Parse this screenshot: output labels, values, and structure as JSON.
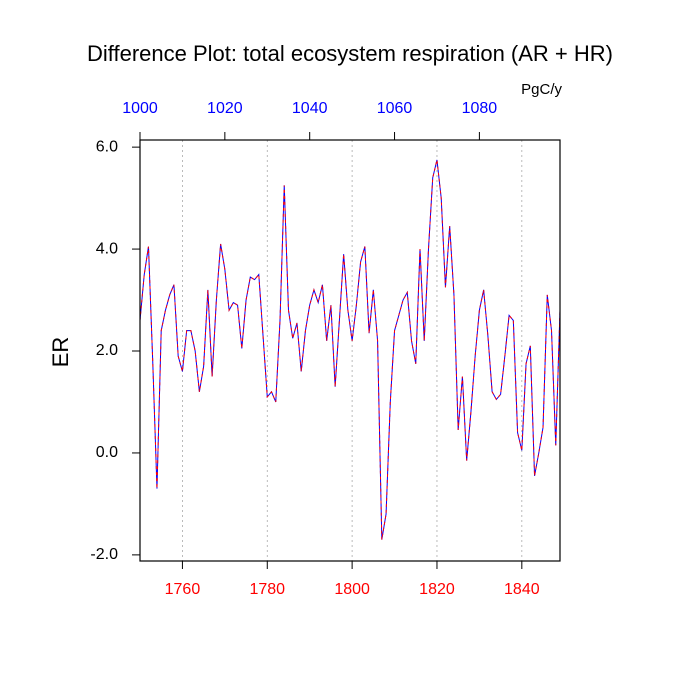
{
  "chart_data": {
    "type": "line",
    "title": "Difference Plot: total ecosystem respiration (AR + HR)",
    "ylabel": "ER",
    "x2label": "PgC/y",
    "x": [
      1750,
      1751,
      1752,
      1753,
      1754,
      1755,
      1756,
      1757,
      1758,
      1759,
      1760,
      1761,
      1762,
      1763,
      1764,
      1765,
      1766,
      1767,
      1768,
      1769,
      1770,
      1771,
      1772,
      1773,
      1774,
      1775,
      1776,
      1777,
      1778,
      1779,
      1780,
      1781,
      1782,
      1783,
      1784,
      1785,
      1786,
      1787,
      1788,
      1789,
      1790,
      1791,
      1792,
      1793,
      1794,
      1795,
      1796,
      1797,
      1798,
      1799,
      1800,
      1801,
      1802,
      1803,
      1804,
      1805,
      1806,
      1807,
      1808,
      1809,
      1810,
      1811,
      1812,
      1813,
      1814,
      1815,
      1816,
      1817,
      1818,
      1819,
      1820,
      1821,
      1822,
      1823,
      1824,
      1825,
      1826,
      1827,
      1828,
      1829,
      1830,
      1831,
      1832,
      1833,
      1834,
      1835,
      1836,
      1837,
      1838,
      1839,
      1840,
      1841,
      1842,
      1843,
      1844,
      1845,
      1846,
      1847,
      1848,
      1849
    ],
    "values": [
      2.6,
      3.5,
      4.05,
      1.8,
      -0.7,
      2.4,
      2.8,
      3.1,
      3.3,
      1.9,
      1.6,
      2.4,
      2.4,
      2.0,
      1.2,
      1.7,
      3.2,
      1.5,
      3.0,
      4.1,
      3.6,
      2.8,
      2.95,
      2.9,
      2.05,
      3.0,
      3.45,
      3.4,
      3.5,
      2.3,
      1.1,
      1.2,
      1.0,
      2.6,
      5.25,
      2.8,
      2.25,
      2.55,
      1.6,
      2.4,
      2.9,
      3.2,
      2.95,
      3.3,
      2.2,
      2.9,
      1.3,
      2.6,
      3.9,
      2.8,
      2.2,
      2.9,
      3.75,
      4.05,
      2.35,
      3.2,
      2.2,
      -1.7,
      -1.2,
      1.0,
      2.4,
      2.7,
      3.0,
      3.15,
      2.2,
      1.75,
      4.0,
      2.2,
      4.0,
      5.4,
      5.75,
      5.0,
      3.25,
      4.45,
      3.1,
      0.45,
      1.5,
      -0.15,
      0.8,
      1.9,
      2.8,
      3.2,
      2.3,
      1.2,
      1.05,
      1.15,
      1.9,
      2.7,
      2.6,
      0.4,
      0.05,
      1.75,
      2.1,
      -0.45,
      0.0,
      0.5,
      3.1,
      2.4,
      0.15,
      2.8
    ],
    "line_colors": [
      "#0000ff",
      "#ff0000"
    ],
    "xlim": [
      1750,
      1849
    ],
    "xticks": [
      1760,
      1780,
      1800,
      1820,
      1840
    ],
    "xtick_color": "#ff0000",
    "x2lim": [
      1000,
      1099
    ],
    "x2ticks": [
      1000,
      1020,
      1040,
      1060,
      1080
    ],
    "x2tick_color": "#0000ff",
    "ylim": [
      -2.12,
      6.14
    ],
    "yticks": [
      {
        "value": 6,
        "label": "6.0"
      },
      {
        "value": 4,
        "label": "4.0"
      },
      {
        "value": 2,
        "label": "2.0"
      },
      {
        "value": 0,
        "label": "0.0"
      },
      {
        "value": -2,
        "label": "-2.0"
      }
    ],
    "grid": "x"
  }
}
